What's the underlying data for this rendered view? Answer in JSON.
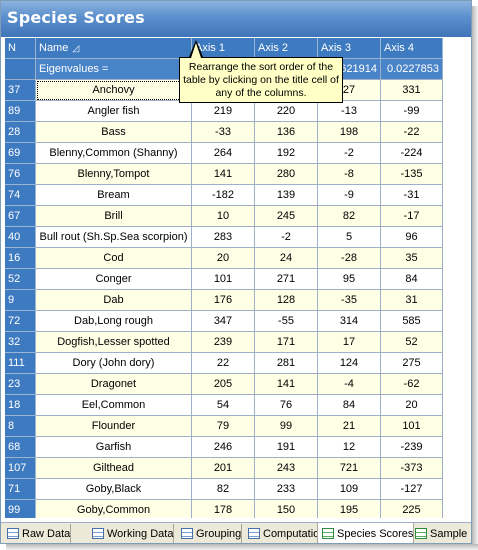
{
  "window": {
    "title": "Species Scores"
  },
  "table": {
    "headers": {
      "n": "N",
      "name": "Name",
      "axis1": "Axis 1",
      "axis2": "Axis 2",
      "axis3": "Axis 3",
      "axis4": "Axis 4"
    },
    "sort_icon": "sort-ascending-icon",
    "eigen": {
      "label": "Eigenvalues =",
      "axis3": "621914",
      "axis4": "0.0227853"
    },
    "rows": [
      {
        "n": "37",
        "name": "Anchovy",
        "a1": "",
        "a2": "",
        "a3": "27",
        "a4": "331"
      },
      {
        "n": "89",
        "name": "Angler fish",
        "a1": "219",
        "a2": "220",
        "a3": "-13",
        "a4": "-99"
      },
      {
        "n": "28",
        "name": "Bass",
        "a1": "-33",
        "a2": "136",
        "a3": "198",
        "a4": "-22"
      },
      {
        "n": "69",
        "name": "Blenny,Common (Shanny)",
        "a1": "264",
        "a2": "192",
        "a3": "-2",
        "a4": "-224"
      },
      {
        "n": "76",
        "name": "Blenny,Tompot",
        "a1": "141",
        "a2": "280",
        "a3": "-8",
        "a4": "-135"
      },
      {
        "n": "74",
        "name": "Bream",
        "a1": "-182",
        "a2": "139",
        "a3": "-9",
        "a4": "-31"
      },
      {
        "n": "67",
        "name": "Brill",
        "a1": "10",
        "a2": "245",
        "a3": "82",
        "a4": "-17"
      },
      {
        "n": "40",
        "name": "Bull rout (Sh.Sp.Sea scorpion)",
        "a1": "283",
        "a2": "-2",
        "a3": "5",
        "a4": "96"
      },
      {
        "n": "16",
        "name": "Cod",
        "a1": "20",
        "a2": "24",
        "a3": "-28",
        "a4": "35"
      },
      {
        "n": "52",
        "name": "Conger",
        "a1": "101",
        "a2": "271",
        "a3": "95",
        "a4": "84"
      },
      {
        "n": "9",
        "name": "Dab",
        "a1": "176",
        "a2": "128",
        "a3": "-35",
        "a4": "31"
      },
      {
        "n": "72",
        "name": "Dab,Long rough",
        "a1": "347",
        "a2": "-55",
        "a3": "314",
        "a4": "585"
      },
      {
        "n": "32",
        "name": "Dogfish,Lesser spotted",
        "a1": "239",
        "a2": "171",
        "a3": "17",
        "a4": "52"
      },
      {
        "n": "111",
        "name": "Dory (John dory)",
        "a1": "22",
        "a2": "281",
        "a3": "124",
        "a4": "275"
      },
      {
        "n": "23",
        "name": "Dragonet",
        "a1": "205",
        "a2": "141",
        "a3": "-4",
        "a4": "-62"
      },
      {
        "n": "18",
        "name": "Eel,Common",
        "a1": "54",
        "a2": "76",
        "a3": "84",
        "a4": "20"
      },
      {
        "n": "8",
        "name": "Flounder",
        "a1": "79",
        "a2": "99",
        "a3": "21",
        "a4": "101"
      },
      {
        "n": "68",
        "name": "Garfish",
        "a1": "246",
        "a2": "191",
        "a3": "12",
        "a4": "-239"
      },
      {
        "n": "107",
        "name": "Gilthead",
        "a1": "201",
        "a2": "243",
        "a3": "721",
        "a4": "-373"
      },
      {
        "n": "71",
        "name": "Goby,Black",
        "a1": "82",
        "a2": "233",
        "a3": "109",
        "a4": "-127"
      },
      {
        "n": "99",
        "name": "Goby,Common",
        "a1": "178",
        "a2": "150",
        "a3": "195",
        "a4": "225"
      }
    ]
  },
  "tooltip": {
    "text": "Rearrange the sort order of the table by clicking on the title cell of any of the columns."
  },
  "tabs": [
    {
      "label": "Raw Data",
      "icon": "grid-icon"
    },
    {
      "label": "Working Data",
      "icon": "grid-icon"
    },
    {
      "label": "Grouping",
      "icon": "grid-icon"
    },
    {
      "label": "Computations",
      "icon": "document-icon"
    },
    {
      "label": "Species Scores",
      "icon": "grid-green-icon",
      "active": true
    },
    {
      "label": "Sample S",
      "icon": "grid-green-icon"
    }
  ]
}
